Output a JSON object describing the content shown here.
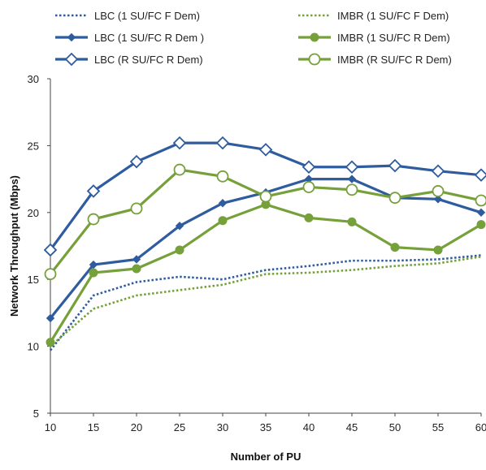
{
  "chart_data": {
    "type": "line",
    "xlabel": "Number of PU",
    "ylabel": "Network Throughput (Mbps)",
    "x": [
      10,
      15,
      20,
      25,
      30,
      35,
      40,
      45,
      50,
      55,
      60
    ],
    "xlim": [
      10,
      60
    ],
    "ylim": [
      5,
      30
    ],
    "yticks": [
      5,
      10,
      15,
      20,
      25,
      30
    ],
    "grid": false,
    "legend_placement": "top",
    "series": [
      {
        "name": "LBC (1 SU/FC F Dem)",
        "color": "#2e5c9e",
        "style": "dotted",
        "marker": "none",
        "values": [
          9.7,
          13.8,
          14.8,
          15.2,
          15.0,
          15.7,
          16.0,
          16.4,
          16.4,
          16.5,
          16.8
        ]
      },
      {
        "name": "IMBR (1 SU/FC F Dem)",
        "color": "#76a03a",
        "style": "dotted",
        "marker": "none",
        "values": [
          10.0,
          12.8,
          13.8,
          14.2,
          14.6,
          15.4,
          15.5,
          15.7,
          16.0,
          16.2,
          16.7
        ]
      },
      {
        "name": "LBC (1 SU/FC R Dem )",
        "color": "#2e5c9e",
        "style": "solid",
        "marker": "diamond-small",
        "values": [
          12.1,
          16.1,
          16.5,
          19.0,
          20.7,
          21.5,
          22.5,
          22.5,
          21.1,
          21.0,
          20.0
        ]
      },
      {
        "name": "IMBR (1 SU/FC R Dem)",
        "color": "#76a03a",
        "style": "solid",
        "marker": "circle-filled",
        "values": [
          10.3,
          15.5,
          15.8,
          17.2,
          19.4,
          20.6,
          19.6,
          19.3,
          17.4,
          17.2,
          19.1
        ]
      },
      {
        "name": "LBC (R SU/FC R Dem)",
        "color": "#2e5c9e",
        "style": "solid",
        "marker": "diamond-open",
        "values": [
          17.2,
          21.6,
          23.8,
          25.2,
          25.2,
          24.7,
          23.4,
          23.4,
          23.5,
          23.1,
          22.8
        ]
      },
      {
        "name": "IMBR (R SU/FC R Dem)",
        "color": "#76a03a",
        "style": "solid",
        "marker": "circle-open",
        "values": [
          15.4,
          19.5,
          20.3,
          23.2,
          22.7,
          21.2,
          21.9,
          21.7,
          21.1,
          21.6,
          20.9
        ]
      }
    ]
  }
}
